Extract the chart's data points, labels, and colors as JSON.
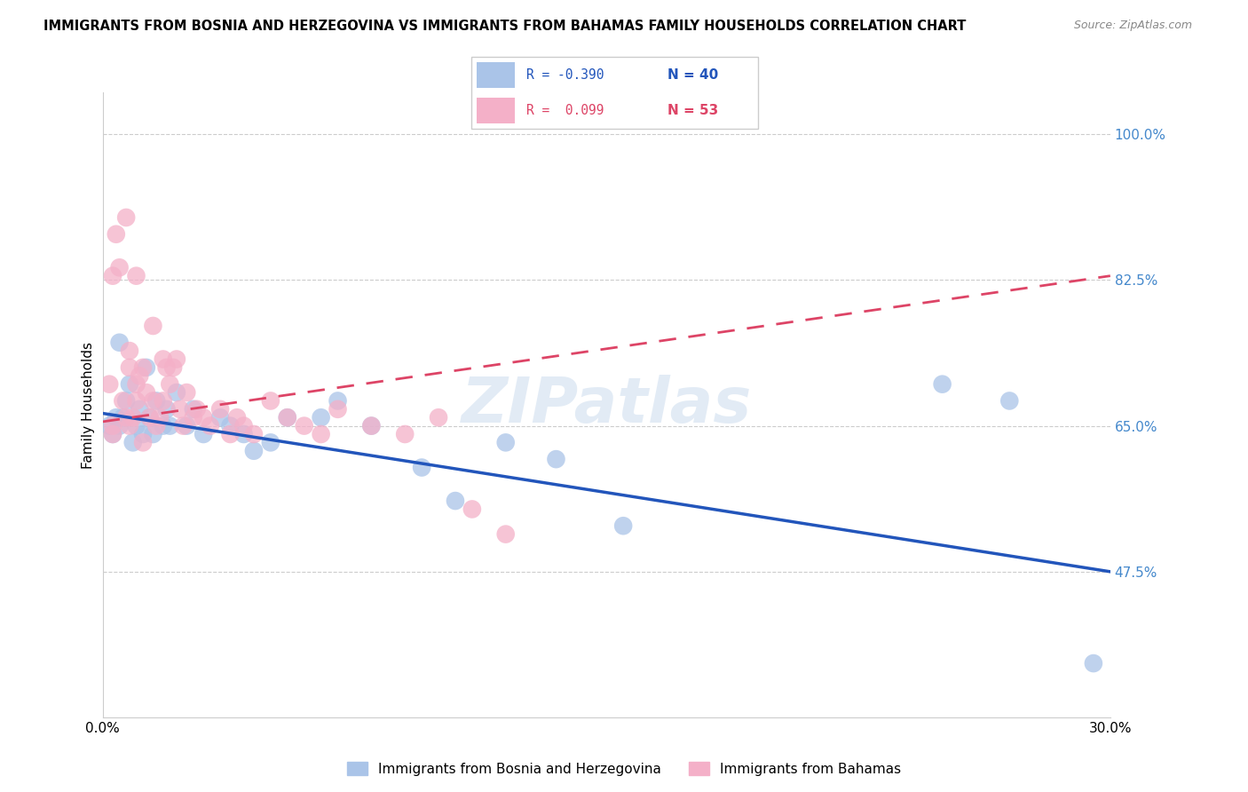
{
  "title": "IMMIGRANTS FROM BOSNIA AND HERZEGOVINA VS IMMIGRANTS FROM BAHAMAS FAMILY HOUSEHOLDS CORRELATION CHART",
  "source": "Source: ZipAtlas.com",
  "ylabel": "Family Households",
  "ytick_labels": [
    "100.0%",
    "82.5%",
    "65.0%",
    "47.5%"
  ],
  "ytick_values": [
    1.0,
    0.825,
    0.65,
    0.475
  ],
  "xlim": [
    0.0,
    0.3
  ],
  "ylim": [
    0.3,
    1.05
  ],
  "blue_color": "#aac4e8",
  "pink_color": "#f4b0c8",
  "blue_line_color": "#2255bb",
  "pink_line_color": "#dd4466",
  "watermark": "ZIPatlas",
  "label_blue": "Immigrants from Bosnia and Herzegovina",
  "label_pink": "Immigrants from Bahamas",
  "legend_r1": "R = -0.390",
  "legend_n1": "N = 40",
  "legend_r2": "R =  0.099",
  "legend_n2": "N = 53",
  "bosnia_x": [
    0.002,
    0.003,
    0.004,
    0.005,
    0.005,
    0.006,
    0.007,
    0.008,
    0.009,
    0.01,
    0.011,
    0.012,
    0.013,
    0.014,
    0.015,
    0.016,
    0.018,
    0.019,
    0.02,
    0.022,
    0.025,
    0.027,
    0.03,
    0.035,
    0.038,
    0.042,
    0.045,
    0.05,
    0.055,
    0.065,
    0.07,
    0.08,
    0.095,
    0.105,
    0.12,
    0.135,
    0.155,
    0.25,
    0.27,
    0.295
  ],
  "bosnia_y": [
    0.65,
    0.64,
    0.66,
    0.75,
    0.65,
    0.66,
    0.68,
    0.7,
    0.63,
    0.65,
    0.67,
    0.64,
    0.72,
    0.66,
    0.64,
    0.68,
    0.65,
    0.67,
    0.65,
    0.69,
    0.65,
    0.67,
    0.64,
    0.66,
    0.65,
    0.64,
    0.62,
    0.63,
    0.66,
    0.66,
    0.68,
    0.65,
    0.6,
    0.56,
    0.63,
    0.61,
    0.53,
    0.7,
    0.68,
    0.365
  ],
  "bahamas_x": [
    0.002,
    0.003,
    0.004,
    0.005,
    0.006,
    0.007,
    0.008,
    0.008,
    0.009,
    0.01,
    0.01,
    0.011,
    0.012,
    0.013,
    0.014,
    0.015,
    0.016,
    0.017,
    0.018,
    0.018,
    0.019,
    0.02,
    0.021,
    0.022,
    0.023,
    0.024,
    0.025,
    0.027,
    0.028,
    0.03,
    0.032,
    0.035,
    0.038,
    0.04,
    0.042,
    0.045,
    0.05,
    0.055,
    0.06,
    0.065,
    0.07,
    0.08,
    0.09,
    0.1,
    0.11,
    0.12,
    0.003,
    0.007,
    0.01,
    0.015,
    0.003,
    0.008,
    0.012
  ],
  "bahamas_y": [
    0.7,
    0.65,
    0.88,
    0.84,
    0.68,
    0.66,
    0.74,
    0.72,
    0.66,
    0.7,
    0.68,
    0.71,
    0.72,
    0.69,
    0.66,
    0.68,
    0.65,
    0.66,
    0.73,
    0.68,
    0.72,
    0.7,
    0.72,
    0.73,
    0.67,
    0.65,
    0.69,
    0.66,
    0.67,
    0.66,
    0.65,
    0.67,
    0.64,
    0.66,
    0.65,
    0.64,
    0.68,
    0.66,
    0.65,
    0.64,
    0.67,
    0.65,
    0.64,
    0.66,
    0.55,
    0.52,
    0.83,
    0.9,
    0.83,
    0.77,
    0.64,
    0.65,
    0.63
  ]
}
